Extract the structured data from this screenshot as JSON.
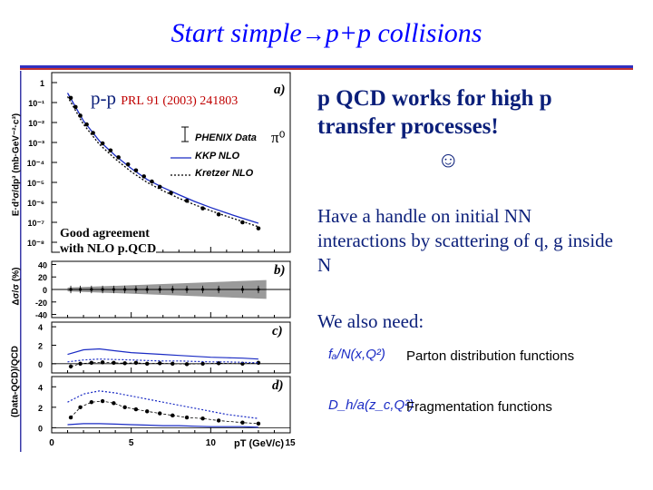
{
  "title": {
    "part1": "Start simple",
    "arrow": "→",
    "part2": "p+p collisions"
  },
  "figure": {
    "label_pp": "p-p",
    "ref": "PRL 91 (2003) 241803",
    "panel_a": "a)",
    "panel_b": "b)",
    "panel_c": "c)",
    "panel_d": "d)",
    "pi0": "π⁰",
    "legend": [
      "PHENIX Data",
      "KKP NLO",
      "Kretzer NLO"
    ],
    "annotation_line1": "Good agreement",
    "annotation_line2": "with NLO p.QCD",
    "ylabel_a": "E·d³σ/dp³ (mb·GeV⁻²·c³)",
    "ylabel_b": "Δσ/σ (%)",
    "ylabel_cd": "(Data-QCD)/QCD",
    "xlabel": "pT (GeV/c)",
    "x_ticks": [
      "0",
      "5",
      "10",
      "15"
    ],
    "a_ticks": [
      "1",
      "10⁻¹",
      "10⁻²",
      "10⁻³",
      "10⁻⁴",
      "10⁻⁵",
      "10⁻⁶",
      "10⁻⁷",
      "10⁻⁸"
    ],
    "b_ticks": [
      "40",
      "20",
      "0",
      "-20",
      "-40"
    ],
    "c_ticks": [
      "4",
      "2",
      "0"
    ],
    "d_ticks": [
      "4",
      "2",
      "0"
    ]
  },
  "right": {
    "head_line1": "p QCD works for high p",
    "head_line2": "transfer processes!",
    "smiley": "☺",
    "handle_text": "Have a handle on initial NN interactions by scattering of q, g inside N",
    "need_text": "We also need:",
    "functions": [
      {
        "symbol": "fₐ/N(x,Q²)",
        "label": "Parton distribution functions"
      },
      {
        "symbol": "D_h/a(z_c,Q²)",
        "label": "Fragmentation functions"
      }
    ]
  },
  "chart_data": [
    {
      "type": "scatter",
      "panel": "a",
      "title": "",
      "xlabel": "pT (GeV/c)",
      "ylabel": "E·d³σ/dp³ (mb·GeV⁻²·c³)",
      "xlim": [
        0,
        15
      ],
      "log_y": true,
      "ylim_exp": [
        -8.5,
        0.5
      ],
      "series": [
        {
          "name": "PHENIX Data",
          "style": "points",
          "x": [
            1.2,
            1.5,
            1.8,
            2.2,
            2.6,
            3.2,
            3.7,
            4.2,
            4.8,
            5.3,
            5.8,
            6.3,
            6.8,
            7.5,
            8.5,
            9.5,
            10.5,
            12.0,
            13.0
          ],
          "y": [
            0.17,
            0.06,
            0.022,
            0.008,
            0.003,
            0.0009,
            0.0004,
            0.00018,
            8e-05,
            4e-05,
            2e-05,
            1.1e-05,
            6e-06,
            3e-06,
            1.2e-06,
            5e-07,
            2.5e-07,
            1e-07,
            5e-08
          ]
        },
        {
          "name": "KKP NLO",
          "style": "solid",
          "x": [
            1.0,
            2,
            3,
            4,
            5,
            6,
            7,
            8,
            9,
            10,
            11,
            12,
            13
          ],
          "y": [
            0.3,
            0.012,
            0.0012,
            0.00022,
            5e-05,
            1.4e-05,
            5.5e-06,
            2.4e-06,
            1.1e-06,
            5.5e-07,
            2.9e-07,
            1.6e-07,
            9e-08
          ]
        },
        {
          "name": "Kretzer NLO",
          "style": "dotted",
          "x": [
            1.0,
            2,
            3,
            4,
            5,
            6,
            7,
            8,
            9,
            10,
            11,
            12,
            13
          ],
          "y": [
            0.2,
            0.008,
            0.0008,
            0.00015,
            3.4e-05,
            1e-05,
            3.8e-06,
            1.6e-06,
            7.5e-07,
            3.8e-07,
            2e-07,
            1.1e-07,
            6e-08
          ]
        }
      ]
    },
    {
      "type": "scatter",
      "panel": "b",
      "xlim": [
        0,
        15
      ],
      "ylim": [
        -45,
        45
      ],
      "series": [
        {
          "name": "",
          "style": "points",
          "x": [
            1.2,
            1.8,
            2.5,
            3.2,
            3.9,
            4.6,
            5.3,
            6.0,
            6.8,
            7.6,
            8.5,
            9.5,
            10.5,
            12.0,
            13.0
          ],
          "y": [
            0,
            0,
            0,
            0,
            0,
            0,
            0,
            0,
            0,
            0,
            0,
            0,
            0,
            0,
            0
          ]
        }
      ],
      "band_x": [
        1,
        13.5
      ],
      "band_halfwidth_start": 3,
      "band_halfwidth_end": 15
    },
    {
      "type": "line",
      "panel": "c",
      "xlim": [
        0,
        15
      ],
      "ylim": [
        -1,
        4.5
      ],
      "series": [
        {
          "name": "",
          "style": "points",
          "x": [
            1.2,
            1.8,
            2.5,
            3.2,
            3.9,
            4.6,
            5.3,
            6.0,
            6.8,
            7.6,
            8.5,
            9.5,
            10.5,
            12.0,
            13.0
          ],
          "y": [
            -0.3,
            0.0,
            0.1,
            0.15,
            0.1,
            0.05,
            0.1,
            0.0,
            0.05,
            0.0,
            -0.05,
            0.0,
            0.05,
            0.0,
            0.1
          ]
        },
        {
          "name": "",
          "style": "solid",
          "x": [
            1,
            2,
            3,
            4,
            5,
            6,
            7,
            8,
            9,
            10,
            11,
            12,
            13
          ],
          "y": [
            1.0,
            1.5,
            1.6,
            1.4,
            1.2,
            1.1,
            1.0,
            0.9,
            0.8,
            0.7,
            0.65,
            0.6,
            0.5
          ]
        },
        {
          "name": "",
          "style": "dotted",
          "x": [
            1,
            2,
            3,
            4,
            5,
            6,
            7,
            8,
            9,
            10,
            11,
            12,
            13
          ],
          "y": [
            0.2,
            0.4,
            0.5,
            0.45,
            0.4,
            0.35,
            0.3,
            0.3,
            0.25,
            0.2,
            0.2,
            0.15,
            0.1
          ]
        }
      ]
    },
    {
      "type": "line",
      "panel": "d",
      "xlim": [
        0,
        15
      ],
      "ylim": [
        -0.5,
        5
      ],
      "series": [
        {
          "name": "",
          "style": "points",
          "x": [
            1.2,
            1.8,
            2.5,
            3.2,
            3.9,
            4.6,
            5.3,
            6.0,
            6.8,
            7.6,
            8.5,
            9.5,
            10.5,
            12.0,
            13.0
          ],
          "y": [
            1.0,
            2.0,
            2.5,
            2.6,
            2.4,
            2.0,
            1.8,
            1.6,
            1.4,
            1.2,
            1.0,
            0.9,
            0.7,
            0.5,
            0.4
          ]
        },
        {
          "name": "",
          "style": "dotted",
          "x": [
            1,
            2,
            3,
            4,
            5,
            6,
            7,
            8,
            9,
            10,
            11,
            12,
            13
          ],
          "y": [
            2.5,
            3.3,
            3.6,
            3.4,
            3.1,
            2.8,
            2.5,
            2.2,
            1.9,
            1.6,
            1.3,
            1.1,
            0.9
          ]
        },
        {
          "name": "",
          "style": "solid",
          "x": [
            1,
            2,
            3,
            4,
            5,
            6,
            7,
            8,
            9,
            10,
            11,
            12,
            13
          ],
          "y": [
            0.3,
            0.4,
            0.4,
            0.35,
            0.3,
            0.25,
            0.2,
            0.2,
            0.15,
            0.1,
            0.1,
            0.1,
            0.05
          ]
        }
      ]
    }
  ]
}
